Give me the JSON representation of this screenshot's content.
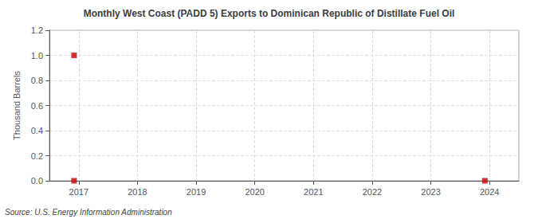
{
  "chart_data": {
    "type": "scatter",
    "title": "Monthly West Coast (PADD 5) Exports to Dominican Republic of Distillate Fuel Oil",
    "ylabel": "Thousand Barrels",
    "annotation": "Source: U.S. Energy Information Administration",
    "x": [
      2016.92,
      2016.92,
      2023.92
    ],
    "values": [
      0.0,
      1.0,
      0.0
    ],
    "color": "#cc0000",
    "marker": "square",
    "xlim": [
      2016.5,
      2024.5
    ],
    "xticks": [
      2017,
      2018,
      2019,
      2020,
      2021,
      2022,
      2023,
      2024
    ],
    "ylim": [
      0.0,
      1.2
    ],
    "yticks": [
      {
        "value": 0,
        "label": "0.0"
      },
      0.2,
      0.4,
      0.6,
      0.8,
      {
        "value": 1,
        "label": "1.0"
      },
      1.2
    ],
    "grid": true
  }
}
